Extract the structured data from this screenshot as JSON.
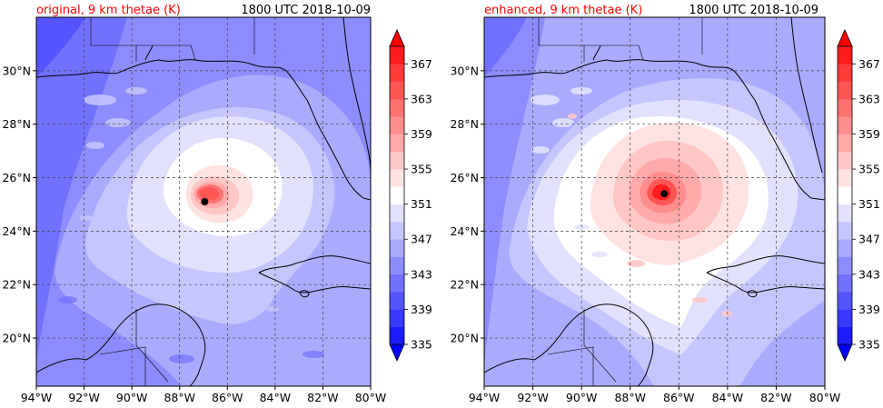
{
  "chart_data": [
    {
      "type": "heatmap",
      "title": "original, 9 km thetae (K)",
      "time_label": "1800 UTC 2018-10-09",
      "title_color": "#ff0000",
      "x_ticks": [
        "94°W",
        "92°W",
        "90°W",
        "88°W",
        "86°W",
        "84°W",
        "82°W",
        "80°W"
      ],
      "y_ticks": [
        "20°N",
        "22°N",
        "24°N",
        "26°N",
        "28°N",
        "30°N"
      ],
      "x_range": [
        -94,
        -80
      ],
      "y_range": [
        18.2,
        32.0
      ],
      "grid": true,
      "storm_center": {
        "lon": -86.95,
        "lat": 25.1
      },
      "colorbar": {
        "ticks": [
          "335",
          "339",
          "343",
          "347",
          "351",
          "355",
          "359",
          "363",
          "367"
        ],
        "levels": [
          335,
          337,
          339,
          341,
          343,
          345,
          347,
          349,
          351,
          353,
          355,
          357,
          359,
          361,
          363,
          365,
          367,
          369
        ],
        "extend": "both"
      }
    },
    {
      "type": "heatmap",
      "title": "enhanced, 9 km thetae (K)",
      "time_label": "1800 UTC 2018-10-09",
      "title_color": "#ff0000",
      "x_ticks": [
        "94°W",
        "92°W",
        "90°W",
        "88°W",
        "86°W",
        "84°W",
        "82°W",
        "80°W"
      ],
      "y_ticks": [
        "20°N",
        "22°N",
        "24°N",
        "26°N",
        "28°N",
        "30°N"
      ],
      "x_range": [
        -94,
        -80
      ],
      "y_range": [
        18.2,
        32.0
      ],
      "grid": true,
      "storm_center": {
        "lon": -86.6,
        "lat": 25.4
      },
      "colorbar": {
        "ticks": [
          "335",
          "339",
          "343",
          "347",
          "351",
          "355",
          "359",
          "363",
          "367"
        ],
        "levels": [
          335,
          337,
          339,
          341,
          343,
          345,
          347,
          349,
          351,
          353,
          355,
          357,
          359,
          361,
          363,
          365,
          367,
          369
        ],
        "extend": "both"
      }
    }
  ],
  "colors": {
    "cmap": [
      "#0000ff",
      "#1c1cff",
      "#3838ff",
      "#5555ff",
      "#7171ff",
      "#8d8dff",
      "#aaaaff",
      "#c6c6ff",
      "#e2e2ff",
      "#ffffff",
      "#ffe2e2",
      "#ffc6c6",
      "#ffaaaa",
      "#ff8d8d",
      "#ff7171",
      "#ff5555",
      "#ff3838",
      "#ff1c1c",
      "#ff0000"
    ]
  }
}
